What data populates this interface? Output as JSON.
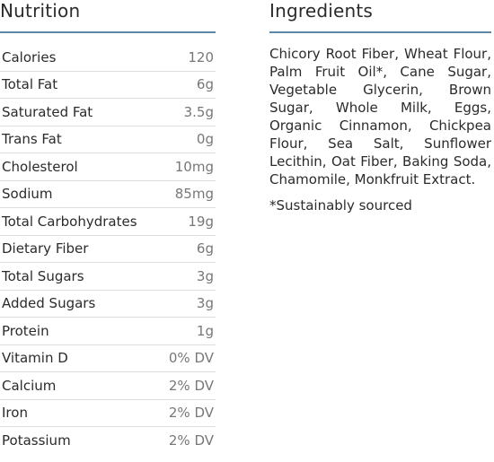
{
  "nutrition": {
    "title": "Nutrition",
    "rows": [
      {
        "label": "Calories",
        "value": "120"
      },
      {
        "label": "Total Fat",
        "value": "6g"
      },
      {
        "label": "Saturated Fat",
        "value": "3.5g"
      },
      {
        "label": "Trans Fat",
        "value": "0g"
      },
      {
        "label": "Cholesterol",
        "value": "10mg"
      },
      {
        "label": "Sodium",
        "value": "85mg"
      },
      {
        "label": "Total Carbohydrates",
        "value": "19g"
      },
      {
        "label": "Dietary Fiber",
        "value": "6g"
      },
      {
        "label": "Total Sugars",
        "value": "3g"
      },
      {
        "label": "Added Sugars",
        "value": "3g"
      },
      {
        "label": "Protein",
        "value": "1g"
      },
      {
        "label": "Vitamin D",
        "value": "0% DV"
      },
      {
        "label": "Calcium",
        "value": "2% DV"
      },
      {
        "label": "Iron",
        "value": "2% DV"
      },
      {
        "label": "Potassium",
        "value": "2% DV"
      }
    ]
  },
  "ingredients": {
    "title": "Ingredients",
    "text": "Chicory Root Fiber, Wheat Flour, Palm Fruit Oil*, Cane Sugar, Vegetable Glycerin, Brown Sugar, Whole Milk, Eggs, Organic Cinnamon, Chickpea Flour, Sea Salt, Sunflower Lecithin, Oat Fiber, Baking Soda, Chamomile, Monkfruit Extract.",
    "footnote": "*Sustainably sourced"
  },
  "colors": {
    "accent_rule": "#5b88a8",
    "text": "#2b2b2b",
    "value_text": "#777777",
    "row_divider": "#dedede"
  }
}
